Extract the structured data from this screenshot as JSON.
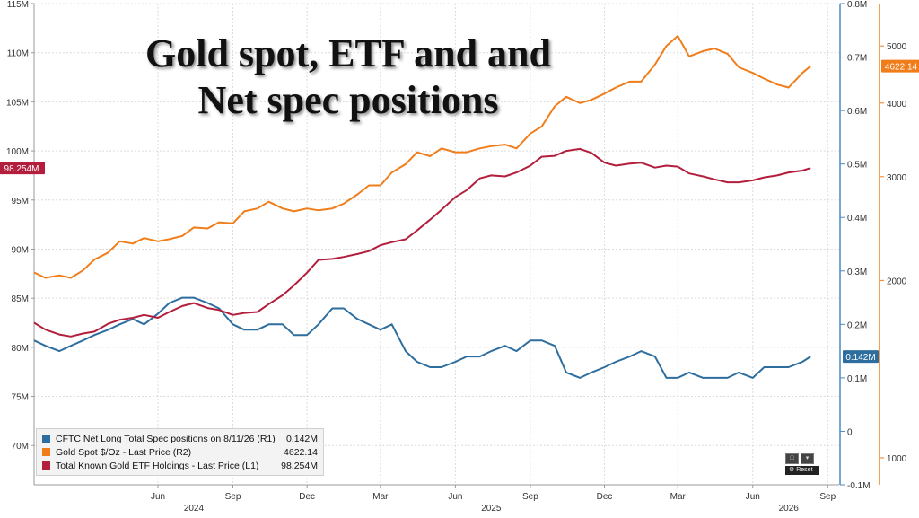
{
  "chart_data": {
    "type": "line",
    "title": "Gold spot, ETF and and\nNet spec positions",
    "title_lines": [
      "Gold spot, ETF and and",
      "Net spec positions"
    ],
    "x": [
      "2024-01-01",
      "2024-01-15",
      "2024-02-01",
      "2024-02-15",
      "2024-03-01",
      "2024-03-15",
      "2024-04-01",
      "2024-04-15",
      "2024-05-01",
      "2024-05-15",
      "2024-06-01",
      "2024-06-15",
      "2024-07-01",
      "2024-07-15",
      "2024-08-01",
      "2024-08-15",
      "2024-09-01",
      "2024-09-15",
      "2024-10-01",
      "2024-10-15",
      "2024-11-01",
      "2024-11-15",
      "2024-12-01",
      "2024-12-15",
      "2025-01-01",
      "2025-01-15",
      "2025-02-01",
      "2025-02-15",
      "2025-03-01",
      "2025-03-15",
      "2025-04-01",
      "2025-04-15",
      "2025-05-01",
      "2025-05-15",
      "2025-06-01",
      "2025-06-15",
      "2025-07-01",
      "2025-07-15",
      "2025-08-01",
      "2025-08-15",
      "2025-09-01",
      "2025-09-15",
      "2025-10-01",
      "2025-10-15",
      "2025-11-01",
      "2025-11-15",
      "2025-12-01",
      "2025-12-15",
      "2026-01-01",
      "2026-01-15",
      "2026-02-01",
      "2026-02-15",
      "2026-03-01",
      "2026-03-15",
      "2026-04-01",
      "2026-04-15",
      "2026-05-01",
      "2026-05-15",
      "2026-06-01",
      "2026-06-15",
      "2026-07-01",
      "2026-07-15",
      "2026-08-01",
      "2026-08-11"
    ],
    "series": [
      {
        "name": "CFTC Net Long Total Spec positions on 8/11/26 (R1)",
        "axis": "R1",
        "color": "#2e6e9e",
        "last_label": "0.142M",
        "last_value": "0.142M",
        "values": [
          0.17,
          0.16,
          0.15,
          0.16,
          0.17,
          0.18,
          0.19,
          0.2,
          0.21,
          0.2,
          0.22,
          0.24,
          0.25,
          0.25,
          0.24,
          0.23,
          0.2,
          0.19,
          0.19,
          0.2,
          0.2,
          0.18,
          0.18,
          0.2,
          0.23,
          0.23,
          0.21,
          0.2,
          0.19,
          0.2,
          0.15,
          0.13,
          0.12,
          0.12,
          0.13,
          0.14,
          0.14,
          0.15,
          0.16,
          0.15,
          0.17,
          0.17,
          0.16,
          0.11,
          0.1,
          0.11,
          0.12,
          0.13,
          0.14,
          0.15,
          0.14,
          0.1,
          0.1,
          0.11,
          0.1,
          0.1,
          0.1,
          0.11,
          0.1,
          0.12,
          0.12,
          0.12,
          0.13,
          0.14
        ]
      },
      {
        "name": "Gold Spot $/Oz - Last Price (R2)",
        "axis": "R2",
        "color": "#f07d1a",
        "last_label": "4622.14",
        "last_value": "4622.14",
        "values": [
          2063,
          2020,
          2040,
          2020,
          2080,
          2170,
          2230,
          2330,
          2310,
          2360,
          2330,
          2350,
          2380,
          2460,
          2450,
          2510,
          2500,
          2620,
          2650,
          2720,
          2650,
          2620,
          2650,
          2630,
          2650,
          2700,
          2800,
          2900,
          2900,
          3050,
          3150,
          3300,
          3250,
          3350,
          3300,
          3300,
          3350,
          3380,
          3400,
          3350,
          3550,
          3650,
          3950,
          4100,
          4000,
          4050,
          4150,
          4250,
          4350,
          4350,
          4650,
          5000,
          5200,
          4800,
          4900,
          4950,
          4850,
          4600,
          4500,
          4400,
          4300,
          4250,
          4500,
          4622.14
        ]
      },
      {
        "name": "Total Known Gold ETF Holdings - Last Price (L1)",
        "axis": "L1",
        "color": "#b21e3c",
        "last_label": "98.254M",
        "last_value": "98.254M",
        "values": [
          82.5,
          81.8,
          81.3,
          81.1,
          81.4,
          81.6,
          82.4,
          82.8,
          83.0,
          83.3,
          83.0,
          83.6,
          84.2,
          84.5,
          84.0,
          83.8,
          83.3,
          83.5,
          83.6,
          84.4,
          85.3,
          86.3,
          87.6,
          88.9,
          89.0,
          89.2,
          89.5,
          89.8,
          90.4,
          90.7,
          91.0,
          91.9,
          93.0,
          94.0,
          95.3,
          96.0,
          97.2,
          97.5,
          97.4,
          97.8,
          98.5,
          99.4,
          99.5,
          100.0,
          100.2,
          99.8,
          98.8,
          98.5,
          98.7,
          98.8,
          98.3,
          98.5,
          98.4,
          97.7,
          97.4,
          97.1,
          96.8,
          96.8,
          97.0,
          97.3,
          97.5,
          97.8,
          98.0,
          98.254
        ]
      }
    ],
    "axes": {
      "left": {
        "label": "L1",
        "ylim": [
          66,
          115
        ],
        "ticks": [
          {
            "v": 70,
            "t": "70M"
          },
          {
            "v": 75,
            "t": "75M"
          },
          {
            "v": 80,
            "t": "80M"
          },
          {
            "v": 85,
            "t": "85M"
          },
          {
            "v": 90,
            "t": "90M"
          },
          {
            "v": 95,
            "t": "95M"
          },
          {
            "v": 100,
            "t": "100M"
          },
          {
            "v": 105,
            "t": "105M"
          },
          {
            "v": 110,
            "t": "110M"
          },
          {
            "v": 115,
            "t": "115M"
          }
        ]
      },
      "right1": {
        "label": "R1",
        "ylim": [
          -0.1,
          0.8
        ],
        "ticks": [
          {
            "v": -0.1,
            "t": "-0.1M"
          },
          {
            "v": 0,
            "t": "0"
          },
          {
            "v": 0.1,
            "t": "0.1M"
          },
          {
            "v": 0.2,
            "t": "0.2M"
          },
          {
            "v": 0.3,
            "t": "0.3M"
          },
          {
            "v": 0.4,
            "t": "0.4M"
          },
          {
            "v": 0.5,
            "t": "0.5M"
          },
          {
            "v": 0.6,
            "t": "0.6M"
          },
          {
            "v": 0.7,
            "t": "0.7M"
          },
          {
            "v": 0.8,
            "t": "0.8M"
          }
        ]
      },
      "right2": {
        "label": "R2",
        "ylim": [
          900,
          5900
        ],
        "scale": "log",
        "ticks": [
          {
            "v": 1000,
            "t": "1000"
          },
          {
            "v": 2000,
            "t": "2000"
          },
          {
            "v": 3000,
            "t": "3000"
          },
          {
            "v": 4000,
            "t": "4000"
          },
          {
            "v": 5000,
            "t": "5000"
          }
        ]
      },
      "x": {
        "months": [
          {
            "d": "2024-06-01",
            "t": "Jun"
          },
          {
            "d": "2024-09-01",
            "t": "Sep"
          },
          {
            "d": "2024-12-01",
            "t": "Dec"
          },
          {
            "d": "2025-03-01",
            "t": "Mar"
          },
          {
            "d": "2025-06-01",
            "t": "Jun"
          },
          {
            "d": "2025-09-01",
            "t": "Sep"
          },
          {
            "d": "2025-12-01",
            "t": "Dec"
          },
          {
            "d": "2026-03-01",
            "t": "Mar"
          },
          {
            "d": "2026-06-01",
            "t": "Jun"
          },
          {
            "d": "2026-09-01",
            "t": "Sep"
          }
        ],
        "years": [
          {
            "d": "2024-07-15",
            "t": "2024"
          },
          {
            "d": "2025-07-15",
            "t": "2025"
          },
          {
            "d": "2026-07-15",
            "t": "2026"
          }
        ],
        "range": [
          "2024-01-01",
          "2026-09-15"
        ]
      }
    },
    "grid": true,
    "legend_position": "bottom-left"
  },
  "legend": [
    {
      "name": "CFTC Net Long Total Spec positions on 8/11/26 (R1)",
      "value": "0.142M",
      "color": "#2e6e9e"
    },
    {
      "name": "Gold Spot $/Oz - Last Price (R2)",
      "value": "4622.14",
      "color": "#f07d1a"
    },
    {
      "name": "Total Known Gold ETF Holdings - Last Price (L1)",
      "value": "98.254M",
      "color": "#b21e3c"
    }
  ],
  "controls": {
    "reset_label": "Reset"
  }
}
